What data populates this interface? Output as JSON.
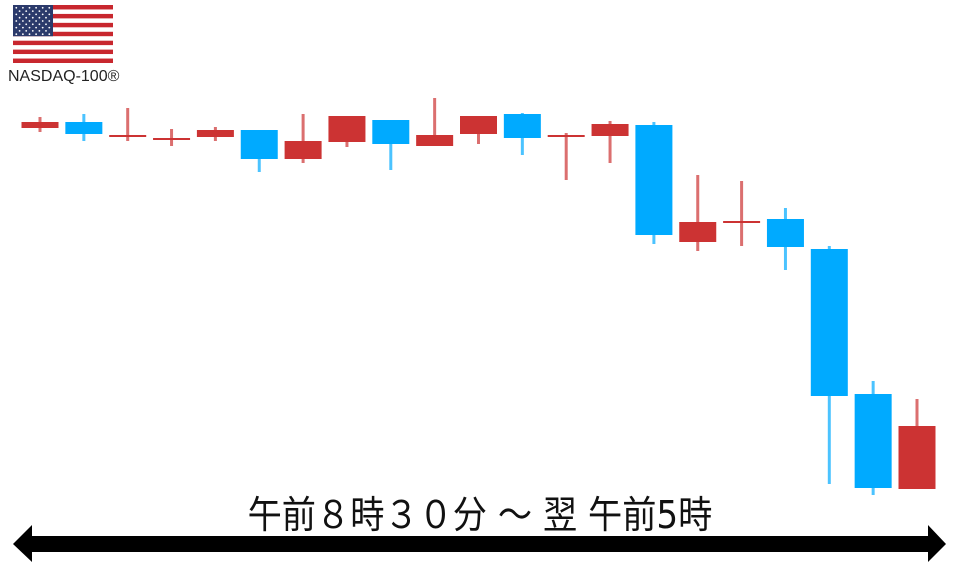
{
  "header": {
    "index_name": "NASDAQ-100®",
    "flag": "us-flag"
  },
  "footer": {
    "time_range_label": "午前８時３０分 ～ 翌 午前5時",
    "arrow": "double-headed-arrow"
  },
  "colors": {
    "up": "#cc3333",
    "down": "#00aaff",
    "arrow": "#000000"
  },
  "chart_data": {
    "type": "candlestick",
    "title": "",
    "xlabel": "午前８時３０分 ～ 翌 午前5時",
    "ylabel": "",
    "ylim": [
      0,
      410
    ],
    "grid": false,
    "note_units": "relative price (no axis printed)",
    "candles": [
      {
        "open": 372,
        "high": 383,
        "low": 368,
        "close": 378
      },
      {
        "open": 378,
        "high": 386,
        "low": 359,
        "close": 366
      },
      {
        "open": 365,
        "high": 392,
        "low": 359,
        "close": 365
      },
      {
        "open": 362,
        "high": 371,
        "low": 354,
        "close": 362
      },
      {
        "open": 363,
        "high": 373,
        "low": 359,
        "close": 370
      },
      {
        "open": 370,
        "high": 370,
        "low": 328,
        "close": 341
      },
      {
        "open": 341,
        "high": 386,
        "low": 337,
        "close": 359
      },
      {
        "open": 358,
        "high": 384,
        "low": 353,
        "close": 384
      },
      {
        "open": 380,
        "high": 380,
        "low": 330,
        "close": 356
      },
      {
        "open": 354,
        "high": 402,
        "low": 354,
        "close": 365
      },
      {
        "open": 366,
        "high": 384,
        "low": 356,
        "close": 384
      },
      {
        "open": 386,
        "high": 387,
        "low": 345,
        "close": 362
      },
      {
        "open": 365,
        "high": 367,
        "low": 320,
        "close": 365
      },
      {
        "open": 364,
        "high": 379,
        "low": 337,
        "close": 376
      },
      {
        "open": 375,
        "high": 378,
        "low": 256,
        "close": 265
      },
      {
        "open": 258,
        "high": 325,
        "low": 249,
        "close": 278
      },
      {
        "open": 279,
        "high": 319,
        "low": 254,
        "close": 279
      },
      {
        "open": 281,
        "high": 292,
        "low": 230,
        "close": 253
      },
      {
        "open": 251,
        "high": 254,
        "low": 16,
        "close": 104
      },
      {
        "open": 106,
        "high": 119,
        "low": 5,
        "close": 12
      },
      {
        "open": 11,
        "high": 101,
        "low": 11,
        "close": 74
      }
    ]
  }
}
